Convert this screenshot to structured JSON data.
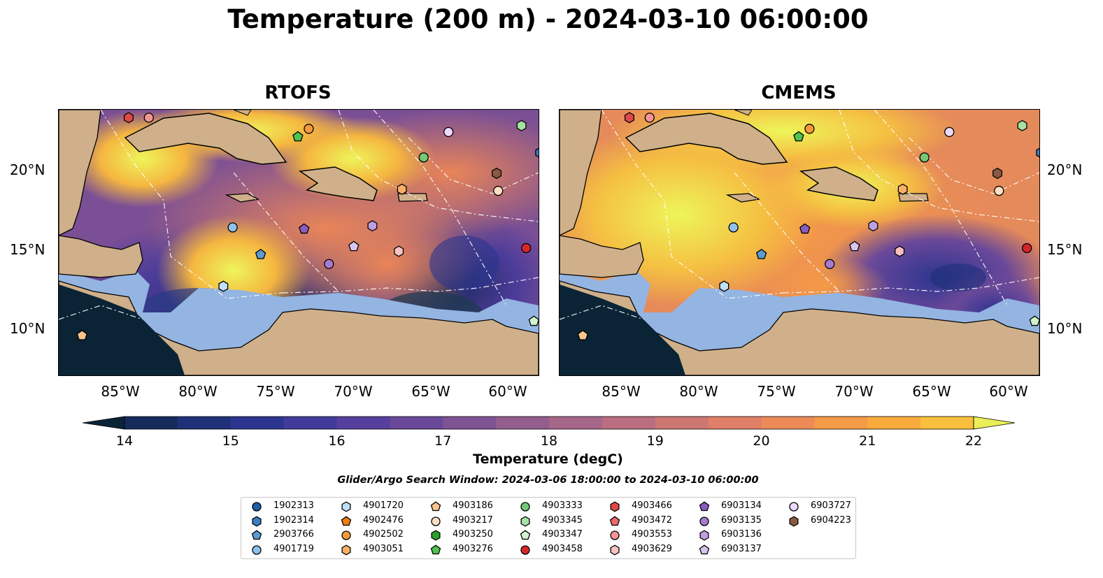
{
  "title": "Temperature (200 m) - 2024-03-10 06:00:00",
  "panels": [
    {
      "title": "RTOFS"
    },
    {
      "title": "CMEMS"
    }
  ],
  "lat_labels": [
    "20°N",
    "15°N",
    "10°N"
  ],
  "lon_labels": [
    "85°W",
    "80°W",
    "75°W",
    "70°W",
    "65°W",
    "60°W"
  ],
  "colorbar": {
    "label": "Temperature (degC)",
    "ticks": [
      "14",
      "15",
      "16",
      "17",
      "18",
      "19",
      "20",
      "21",
      "22"
    ],
    "colors": [
      "#0a2436",
      "#142b5c",
      "#1e3178",
      "#2c3590",
      "#413c9c",
      "#563f9d",
      "#6a4899",
      "#7e5293",
      "#935d8d",
      "#a66688",
      "#bb6e80",
      "#cd7773",
      "#df7f67",
      "#ec8b58",
      "#f59a46",
      "#f8ab3c",
      "#f9c03d",
      "#f2d644",
      "#e9ef55"
    ]
  },
  "search_window": "Glider/Argo Search Window: 2024-03-06 18:00:00 to 2024-03-10 06:00:00",
  "legend": [
    {
      "id": "1902313",
      "shape": "circle",
      "color": "#1f5fa8"
    },
    {
      "id": "1902314",
      "shape": "hexagon",
      "color": "#3a7ec2"
    },
    {
      "id": "2903766",
      "shape": "pentagon",
      "color": "#5a9bd4"
    },
    {
      "id": "4901719",
      "shape": "circle",
      "color": "#8fc2ea"
    },
    {
      "id": "4901720",
      "shape": "hexagon",
      "color": "#bfe0f7"
    },
    {
      "id": "4902476",
      "shape": "pentagon",
      "color": "#f07f14"
    },
    {
      "id": "4902502",
      "shape": "circle",
      "color": "#f39a3a"
    },
    {
      "id": "4903051",
      "shape": "hexagon",
      "color": "#f8b066"
    },
    {
      "id": "4903186",
      "shape": "pentagon",
      "color": "#fbc48e"
    },
    {
      "id": "4903217",
      "shape": "circle",
      "color": "#fde0c2"
    },
    {
      "id": "4903250",
      "shape": "hexagon",
      "color": "#2ca02c"
    },
    {
      "id": "4903276",
      "shape": "pentagon",
      "color": "#4fc24f"
    },
    {
      "id": "4903333",
      "shape": "circle",
      "color": "#74c876"
    },
    {
      "id": "4903345",
      "shape": "hexagon",
      "color": "#a6e2a2"
    },
    {
      "id": "4903347",
      "shape": "pentagon",
      "color": "#d0f5cc"
    },
    {
      "id": "4903458",
      "shape": "circle",
      "color": "#d62728"
    },
    {
      "id": "4903466",
      "shape": "hexagon",
      "color": "#e04848"
    },
    {
      "id": "4903472",
      "shape": "pentagon",
      "color": "#ea6b6b"
    },
    {
      "id": "4903553",
      "shape": "circle",
      "color": "#f39494"
    },
    {
      "id": "4903629",
      "shape": "hexagon",
      "color": "#f8c2c2"
    },
    {
      "id": "6903134",
      "shape": "pentagon",
      "color": "#8a5cc0"
    },
    {
      "id": "6903135",
      "shape": "circle",
      "color": "#a57cd0"
    },
    {
      "id": "6903136",
      "shape": "hexagon",
      "color": "#bea0e0"
    },
    {
      "id": "6903137",
      "shape": "pentagon",
      "color": "#d8c4f0"
    },
    {
      "id": "6903727",
      "shape": "circle",
      "color": "#ecd9fb"
    },
    {
      "id": "6904223",
      "shape": "hexagon",
      "color": "#8b5a42"
    }
  ],
  "floats_on_map": [
    {
      "id": "4903466",
      "lon": -84.5,
      "lat": 23.3
    },
    {
      "id": "4903553",
      "lon": -83.2,
      "lat": 23.3
    },
    {
      "id": "4902502",
      "lon": -72.9,
      "lat": 22.6
    },
    {
      "id": "4903276",
      "lon": -73.6,
      "lat": 22.1
    },
    {
      "id": "6903727",
      "lon": -63.9,
      "lat": 22.4
    },
    {
      "id": "4903345",
      "lon": -59.2,
      "lat": 22.8
    },
    {
      "id": "4903333",
      "lon": -65.5,
      "lat": 20.8
    },
    {
      "id": "6904223",
      "lon": -60.8,
      "lat": 19.8
    },
    {
      "id": "4903217",
      "lon": -60.7,
      "lat": 18.7
    },
    {
      "id": "4903051",
      "lon": -66.9,
      "lat": 18.8
    },
    {
      "id": "4901719",
      "lon": -77.8,
      "lat": 16.4
    },
    {
      "id": "6903134",
      "lon": -73.2,
      "lat": 16.3
    },
    {
      "id": "6903136",
      "lon": -68.8,
      "lat": 16.5
    },
    {
      "id": "6903137",
      "lon": -70.0,
      "lat": 15.2
    },
    {
      "id": "2903766",
      "lon": -76.0,
      "lat": 14.7
    },
    {
      "id": "6903135",
      "lon": -71.6,
      "lat": 14.1
    },
    {
      "id": "4903629",
      "lon": -67.1,
      "lat": 14.9
    },
    {
      "id": "4903458",
      "lon": -58.9,
      "lat": 15.1
    },
    {
      "id": "4901720",
      "lon": -78.4,
      "lat": 12.7
    },
    {
      "id": "4903347",
      "lon": -58.4,
      "lat": 10.5
    },
    {
      "id": "4903186",
      "lon": -87.5,
      "lat": 9.6
    },
    {
      "id": "1902314",
      "lon": -58.0,
      "lat": 21.1
    }
  ]
}
